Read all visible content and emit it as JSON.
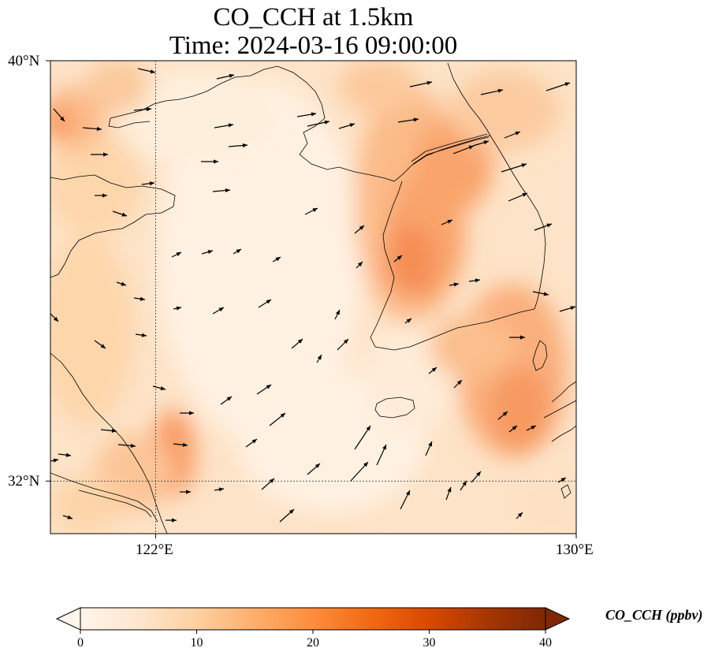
{
  "title": {
    "line1": "CO_CCH at 1.5km",
    "line2": "Time: 2024-03-16 09:00:00"
  },
  "axes": {
    "lat_ticks": [
      "40°N",
      "32°N"
    ],
    "lon_ticks": [
      "122°E",
      "130°E"
    ],
    "lon_range": [
      120,
      130
    ],
    "lat_range": [
      31,
      40
    ],
    "gridlines": {
      "lon": [
        122
      ],
      "lat": [
        32
      ]
    }
  },
  "colorbar": {
    "label": "CO_CCH (ppbv)",
    "ticks": [
      "0",
      "10",
      "20",
      "30",
      "40"
    ],
    "range": [
      0,
      40
    ],
    "extend": "both",
    "colormap": [
      "#fff5eb",
      "#fee6ce",
      "#fdd0a2",
      "#fdae6b",
      "#fd8d3c",
      "#f16913",
      "#d94801",
      "#a63603",
      "#7f2704"
    ]
  },
  "field": {
    "variable": "CO_CCH",
    "level": "1.5km",
    "units": "ppbv",
    "value_range_shown": [
      3,
      17
    ],
    "peak_region": "west coast of Korean peninsula / Yellow Sea coast"
  }
}
